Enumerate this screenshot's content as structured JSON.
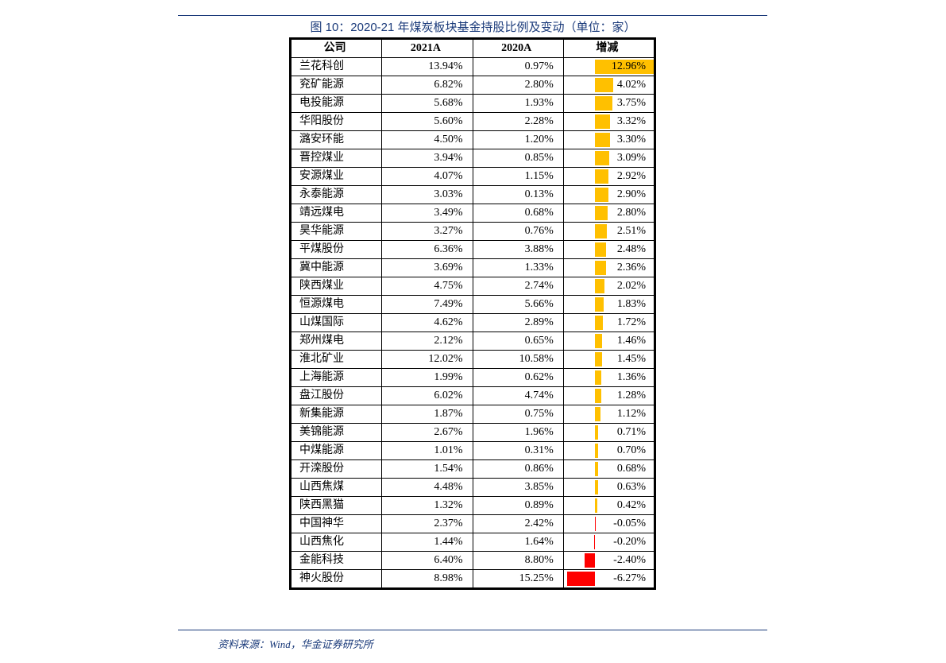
{
  "title": "图 10：2020-21 年煤炭板块基金持股比例及变动（单位：家）",
  "source": "资料来源：Wind，华金证券研究所",
  "table": {
    "headers": {
      "company": "公司",
      "y2021": "2021A",
      "y2020": "2020A",
      "delta": "增减"
    },
    "colors": {
      "pos_bar": "#ffc000",
      "neg_bar": "#ff0000",
      "border": "#000000",
      "rule": "#1a3a7a",
      "text": "#000000"
    },
    "delta_axis": {
      "min": -7.0,
      "max": 13.0,
      "zero_frac": 0.35
    },
    "rows": [
      {
        "company": "兰花科创",
        "y2021": "13.94%",
        "y2020": "0.97%",
        "delta_label": "12.96%",
        "delta_val": 12.96
      },
      {
        "company": "兖矿能源",
        "y2021": "6.82%",
        "y2020": "2.80%",
        "delta_label": "4.02%",
        "delta_val": 4.02
      },
      {
        "company": "电投能源",
        "y2021": "5.68%",
        "y2020": "1.93%",
        "delta_label": "3.75%",
        "delta_val": 3.75
      },
      {
        "company": "华阳股份",
        "y2021": "5.60%",
        "y2020": "2.28%",
        "delta_label": "3.32%",
        "delta_val": 3.32
      },
      {
        "company": "潞安环能",
        "y2021": "4.50%",
        "y2020": "1.20%",
        "delta_label": "3.30%",
        "delta_val": 3.3
      },
      {
        "company": "晋控煤业",
        "y2021": "3.94%",
        "y2020": "0.85%",
        "delta_label": "3.09%",
        "delta_val": 3.09
      },
      {
        "company": "安源煤业",
        "y2021": "4.07%",
        "y2020": "1.15%",
        "delta_label": "2.92%",
        "delta_val": 2.92
      },
      {
        "company": "永泰能源",
        "y2021": "3.03%",
        "y2020": "0.13%",
        "delta_label": "2.90%",
        "delta_val": 2.9
      },
      {
        "company": "靖远煤电",
        "y2021": "3.49%",
        "y2020": "0.68%",
        "delta_label": "2.80%",
        "delta_val": 2.8
      },
      {
        "company": "昊华能源",
        "y2021": "3.27%",
        "y2020": "0.76%",
        "delta_label": "2.51%",
        "delta_val": 2.51
      },
      {
        "company": "平煤股份",
        "y2021": "6.36%",
        "y2020": "3.88%",
        "delta_label": "2.48%",
        "delta_val": 2.48
      },
      {
        "company": "冀中能源",
        "y2021": "3.69%",
        "y2020": "1.33%",
        "delta_label": "2.36%",
        "delta_val": 2.36
      },
      {
        "company": "陕西煤业",
        "y2021": "4.75%",
        "y2020": "2.74%",
        "delta_label": "2.02%",
        "delta_val": 2.02
      },
      {
        "company": "恒源煤电",
        "y2021": "7.49%",
        "y2020": "5.66%",
        "delta_label": "1.83%",
        "delta_val": 1.83
      },
      {
        "company": "山煤国际",
        "y2021": "4.62%",
        "y2020": "2.89%",
        "delta_label": "1.72%",
        "delta_val": 1.72
      },
      {
        "company": "郑州煤电",
        "y2021": "2.12%",
        "y2020": "0.65%",
        "delta_label": "1.46%",
        "delta_val": 1.46
      },
      {
        "company": "淮北矿业",
        "y2021": "12.02%",
        "y2020": "10.58%",
        "delta_label": "1.45%",
        "delta_val": 1.45
      },
      {
        "company": "上海能源",
        "y2021": "1.99%",
        "y2020": "0.62%",
        "delta_label": "1.36%",
        "delta_val": 1.36
      },
      {
        "company": "盘江股份",
        "y2021": "6.02%",
        "y2020": "4.74%",
        "delta_label": "1.28%",
        "delta_val": 1.28
      },
      {
        "company": "新集能源",
        "y2021": "1.87%",
        "y2020": "0.75%",
        "delta_label": "1.12%",
        "delta_val": 1.12
      },
      {
        "company": "美锦能源",
        "y2021": "2.67%",
        "y2020": "1.96%",
        "delta_label": "0.71%",
        "delta_val": 0.71
      },
      {
        "company": "中煤能源",
        "y2021": "1.01%",
        "y2020": "0.31%",
        "delta_label": "0.70%",
        "delta_val": 0.7
      },
      {
        "company": "开滦股份",
        "y2021": "1.54%",
        "y2020": "0.86%",
        "delta_label": "0.68%",
        "delta_val": 0.68
      },
      {
        "company": "山西焦煤",
        "y2021": "4.48%",
        "y2020": "3.85%",
        "delta_label": "0.63%",
        "delta_val": 0.63
      },
      {
        "company": "陕西黑猫",
        "y2021": "1.32%",
        "y2020": "0.89%",
        "delta_label": "0.42%",
        "delta_val": 0.42
      },
      {
        "company": "中国神华",
        "y2021": "2.37%",
        "y2020": "2.42%",
        "delta_label": "-0.05%",
        "delta_val": -0.05
      },
      {
        "company": "山西焦化",
        "y2021": "1.44%",
        "y2020": "1.64%",
        "delta_label": "-0.20%",
        "delta_val": -0.2
      },
      {
        "company": "金能科技",
        "y2021": "6.40%",
        "y2020": "8.80%",
        "delta_label": "-2.40%",
        "delta_val": -2.4
      },
      {
        "company": "神火股份",
        "y2021": "8.98%",
        "y2020": "15.25%",
        "delta_label": "-6.27%",
        "delta_val": -6.27
      }
    ]
  }
}
